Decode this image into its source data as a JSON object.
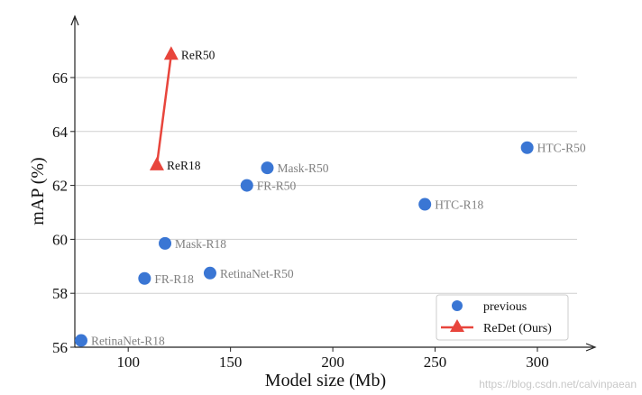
{
  "chart_data": {
    "type": "scatter",
    "title": "",
    "xlabel": "Model size (Mb)",
    "ylabel": "mAP (%)",
    "xlim": [
      75,
      325
    ],
    "ylim": [
      56,
      68
    ],
    "xticks": [
      100,
      150,
      200,
      250,
      300
    ],
    "yticks": [
      56,
      58,
      60,
      62,
      64,
      66
    ],
    "grid": "horizontal",
    "legend_position": "bottom-right",
    "series": [
      {
        "name": "previous",
        "marker": "circle",
        "color": "#3a76d4",
        "label_color": "#7f7f7f",
        "points": [
          {
            "label": "RetinaNet-R18",
            "x": 77,
            "y": 56.25
          },
          {
            "label": "FR-R18",
            "x": 108,
            "y": 58.55
          },
          {
            "label": "Mask-R18",
            "x": 118,
            "y": 59.85
          },
          {
            "label": "RetinaNet-R50",
            "x": 140,
            "y": 58.75
          },
          {
            "label": "FR-R50",
            "x": 158,
            "y": 62.0
          },
          {
            "label": "Mask-R50",
            "x": 168,
            "y": 62.65
          },
          {
            "label": "HTC-R18",
            "x": 245,
            "y": 61.3
          },
          {
            "label": "HTC-R50",
            "x": 295,
            "y": 63.4
          }
        ]
      },
      {
        "name": "ReDet (Ours)",
        "marker": "triangle",
        "connected": true,
        "color": "#e8453c",
        "label_color": "#111111",
        "points": [
          {
            "label": "ReR18",
            "x": 114,
            "y": 62.75
          },
          {
            "label": "ReR50",
            "x": 121,
            "y": 66.85
          }
        ]
      }
    ]
  },
  "watermark": "https://blog.csdn.net/calvinpaean"
}
